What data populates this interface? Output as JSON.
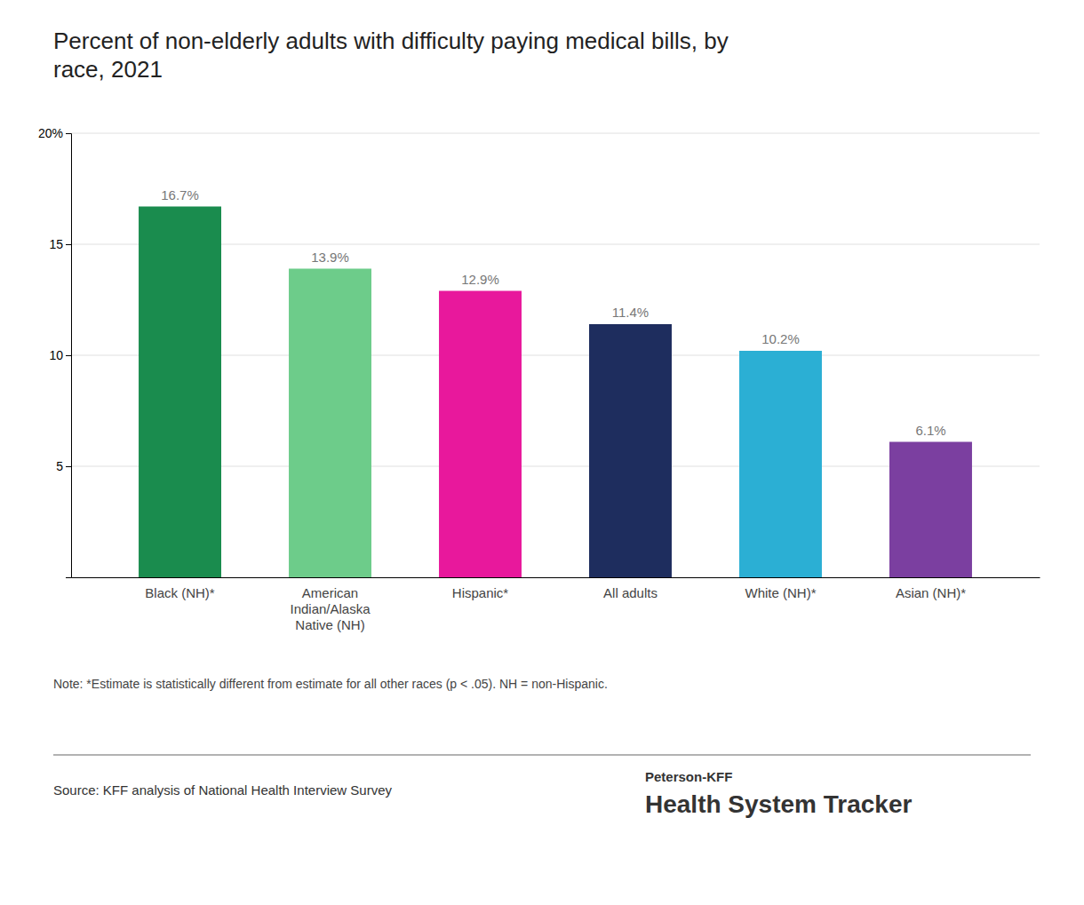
{
  "chart_data": {
    "type": "bar",
    "title": "Percent of non-elderly adults with difficulty paying medical bills, by\nrace, 2021",
    "categories": [
      "Black (NH)*",
      "American\nIndian/Alaska\nNative (NH)",
      "Hispanic*",
      "All adults",
      "White (NH)*",
      "Asian (NH)*"
    ],
    "values": [
      16.7,
      13.9,
      12.9,
      11.4,
      10.2,
      6.1
    ],
    "value_labels": [
      "16.7%",
      "13.9%",
      "12.9%",
      "11.4%",
      "10.2%",
      "6.1%"
    ],
    "data_labels": true,
    "colors": [
      "#1a8c4e",
      "#6dcc8a",
      "#e8189c",
      "#1e2d5e",
      "#2bafd4",
      "#7b3fa0"
    ],
    "ylim": [
      0,
      20
    ],
    "yticks": [
      5,
      10,
      15,
      {
        "value": 20,
        "label": "20%"
      }
    ],
    "grid": true,
    "note": "Note: *Estimate is statistically different from estimate for all other races (p < .05). NH = non-Hispanic.",
    "source": "Source: KFF analysis of National Health Interview Survey",
    "branding": [
      "Peterson-KFF",
      "Health System Tracker"
    ]
  }
}
